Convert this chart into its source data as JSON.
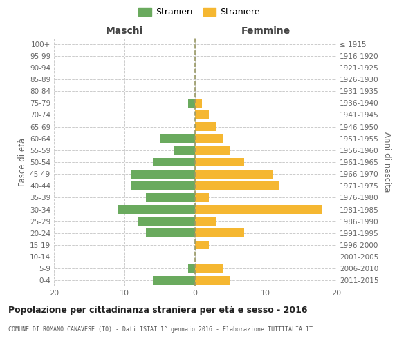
{
  "age_groups": [
    "0-4",
    "5-9",
    "10-14",
    "15-19",
    "20-24",
    "25-29",
    "30-34",
    "35-39",
    "40-44",
    "45-49",
    "50-54",
    "55-59",
    "60-64",
    "65-69",
    "70-74",
    "75-79",
    "80-84",
    "85-89",
    "90-94",
    "95-99",
    "100+"
  ],
  "birth_years": [
    "2011-2015",
    "2006-2010",
    "2001-2005",
    "1996-2000",
    "1991-1995",
    "1986-1990",
    "1981-1985",
    "1976-1980",
    "1971-1975",
    "1966-1970",
    "1961-1965",
    "1956-1960",
    "1951-1955",
    "1946-1950",
    "1941-1945",
    "1936-1940",
    "1931-1935",
    "1926-1930",
    "1921-1925",
    "1916-1920",
    "≤ 1915"
  ],
  "maschi": [
    6,
    1,
    0,
    0,
    7,
    8,
    11,
    7,
    9,
    9,
    6,
    3,
    5,
    0,
    0,
    1,
    0,
    0,
    0,
    0,
    0
  ],
  "femmine": [
    5,
    4,
    0,
    2,
    7,
    3,
    18,
    2,
    12,
    11,
    7,
    5,
    4,
    3,
    2,
    1,
    0,
    0,
    0,
    0,
    0
  ],
  "color_maschi": "#6aaa5e",
  "color_femmine": "#f5b731",
  "title_main": "Popolazione per cittadinanza straniera per età e sesso - 2016",
  "title_sub": "COMUNE DI ROMANO CANAVESE (TO) - Dati ISTAT 1° gennaio 2016 - Elaborazione TUTTITALIA.IT",
  "xlabel_left": "Maschi",
  "xlabel_right": "Femmine",
  "ylabel_left": "Fasce di età",
  "ylabel_right": "Anni di nascita",
  "legend_maschi": "Stranieri",
  "legend_femmine": "Straniere",
  "xlim": 20,
  "background_color": "#ffffff",
  "grid_color": "#cccccc"
}
